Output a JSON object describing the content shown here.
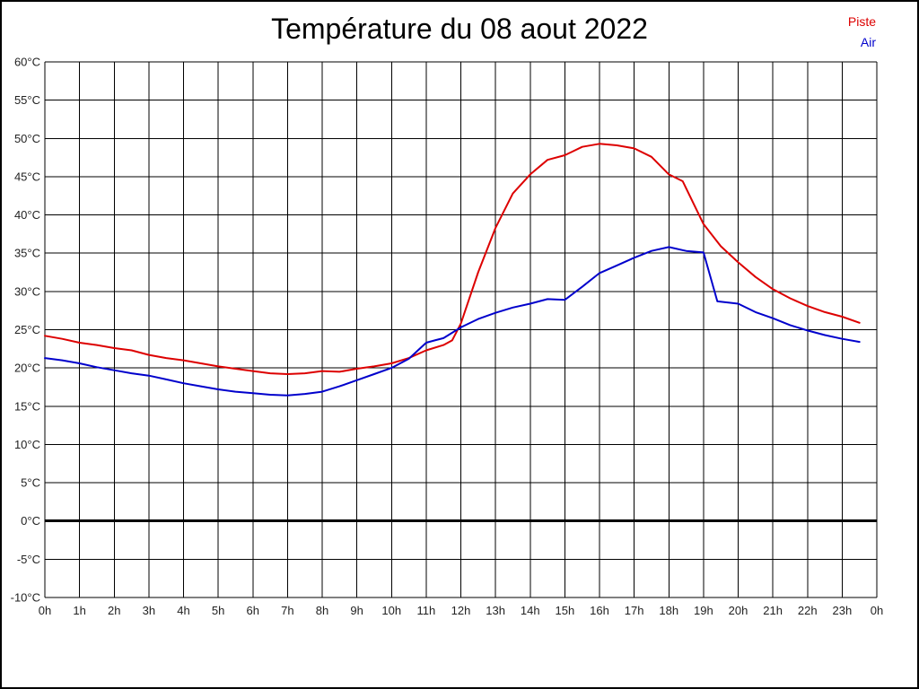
{
  "title": "Température du 08 aout 2022",
  "legend": {
    "items": [
      {
        "label": "Piste",
        "color": "#dd0000"
      },
      {
        "label": "Air",
        "color": "#0000cc"
      }
    ]
  },
  "chart_data": {
    "type": "line",
    "title": "Température du 08 aout 2022",
    "xlabel": "",
    "ylabel": "",
    "x_unit": "h",
    "y_unit": "°C",
    "xlim": [
      0,
      24
    ],
    "ylim": [
      -10,
      60
    ],
    "grid": true,
    "legend_position": "top-right",
    "xtick_labels": [
      "0h",
      "1h",
      "2h",
      "3h",
      "4h",
      "5h",
      "6h",
      "7h",
      "8h",
      "9h",
      "10h",
      "11h",
      "12h",
      "13h",
      "14h",
      "15h",
      "16h",
      "17h",
      "18h",
      "19h",
      "20h",
      "21h",
      "22h",
      "23h",
      "0h"
    ],
    "ytick_values": [
      60,
      55,
      50,
      45,
      40,
      35,
      30,
      25,
      20,
      15,
      10,
      5,
      0,
      -5,
      -10
    ],
    "ytick_suffix": "°C",
    "zero_line": {
      "value": 0,
      "color": "#000000",
      "width": 3
    },
    "series": [
      {
        "name": "Piste",
        "color": "#dd0000",
        "width": 2,
        "points": [
          [
            0,
            24.2
          ],
          [
            0.5,
            23.8
          ],
          [
            1,
            23.3
          ],
          [
            1.5,
            23.0
          ],
          [
            2,
            22.6
          ],
          [
            2.5,
            22.3
          ],
          [
            3,
            21.7
          ],
          [
            3.5,
            21.3
          ],
          [
            4,
            21.0
          ],
          [
            4.5,
            20.6
          ],
          [
            5,
            20.2
          ],
          [
            5.5,
            19.9
          ],
          [
            6,
            19.6
          ],
          [
            6.5,
            19.3
          ],
          [
            7,
            19.2
          ],
          [
            7.5,
            19.3
          ],
          [
            8,
            19.6
          ],
          [
            8.5,
            19.5
          ],
          [
            9,
            19.9
          ],
          [
            9.5,
            20.2
          ],
          [
            10,
            20.6
          ],
          [
            10.5,
            21.3
          ],
          [
            11,
            22.3
          ],
          [
            11.5,
            23.0
          ],
          [
            11.75,
            23.6
          ],
          [
            12,
            25.8
          ],
          [
            12.5,
            32.5
          ],
          [
            13,
            38.3
          ],
          [
            13.5,
            42.8
          ],
          [
            14,
            45.3
          ],
          [
            14.5,
            47.2
          ],
          [
            15,
            47.8
          ],
          [
            15.5,
            48.9
          ],
          [
            16,
            49.3
          ],
          [
            16.5,
            49.1
          ],
          [
            17,
            48.7
          ],
          [
            17.5,
            47.6
          ],
          [
            18,
            45.3
          ],
          [
            18.4,
            44.4
          ],
          [
            19,
            38.8
          ],
          [
            19.5,
            35.9
          ],
          [
            20,
            33.8
          ],
          [
            20.5,
            31.9
          ],
          [
            21,
            30.3
          ],
          [
            21.5,
            29.1
          ],
          [
            22,
            28.1
          ],
          [
            22.5,
            27.3
          ],
          [
            23,
            26.7
          ],
          [
            23.5,
            25.9
          ]
        ]
      },
      {
        "name": "Air",
        "color": "#0000cc",
        "width": 2,
        "points": [
          [
            0,
            21.3
          ],
          [
            0.5,
            21.0
          ],
          [
            1,
            20.6
          ],
          [
            1.5,
            20.1
          ],
          [
            2,
            19.7
          ],
          [
            2.5,
            19.3
          ],
          [
            3,
            19.0
          ],
          [
            3.5,
            18.5
          ],
          [
            4,
            18.0
          ],
          [
            4.5,
            17.6
          ],
          [
            5,
            17.2
          ],
          [
            5.5,
            16.9
          ],
          [
            6,
            16.7
          ],
          [
            6.5,
            16.5
          ],
          [
            7,
            16.4
          ],
          [
            7.5,
            16.6
          ],
          [
            8,
            16.9
          ],
          [
            8.5,
            17.6
          ],
          [
            9,
            18.4
          ],
          [
            9.5,
            19.2
          ],
          [
            10,
            20.0
          ],
          [
            10.5,
            21.2
          ],
          [
            11,
            23.3
          ],
          [
            11.25,
            23.6
          ],
          [
            11.5,
            23.9
          ],
          [
            12,
            25.3
          ],
          [
            12.5,
            26.4
          ],
          [
            13,
            27.2
          ],
          [
            13.5,
            27.9
          ],
          [
            14,
            28.4
          ],
          [
            14.5,
            29.0
          ],
          [
            15,
            28.9
          ],
          [
            15.5,
            30.6
          ],
          [
            16,
            32.4
          ],
          [
            16.5,
            33.4
          ],
          [
            17,
            34.4
          ],
          [
            17.5,
            35.3
          ],
          [
            18,
            35.8
          ],
          [
            18.5,
            35.3
          ],
          [
            19,
            35.1
          ],
          [
            19.4,
            28.7
          ],
          [
            20,
            28.4
          ],
          [
            20.5,
            27.3
          ],
          [
            21,
            26.5
          ],
          [
            21.5,
            25.6
          ],
          [
            22,
            24.9
          ],
          [
            22.5,
            24.3
          ],
          [
            23,
            23.8
          ],
          [
            23.5,
            23.4
          ]
        ]
      }
    ]
  }
}
